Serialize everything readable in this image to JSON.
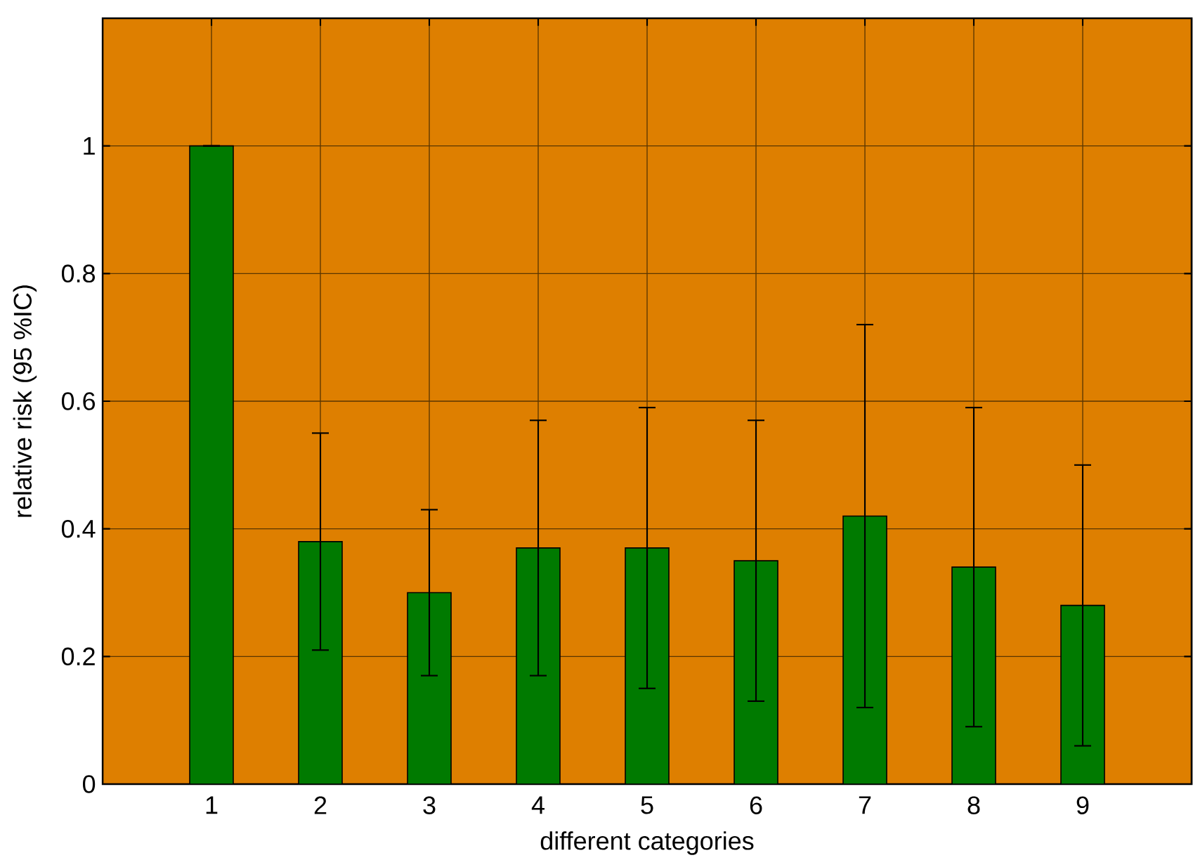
{
  "chart_data": {
    "type": "bar",
    "xlabel": "different categories",
    "ylabel": "relative risk (95 %IC)",
    "categories": [
      "1",
      "2",
      "3",
      "4",
      "5",
      "6",
      "7",
      "8",
      "9"
    ],
    "values": [
      1.0,
      0.38,
      0.3,
      0.37,
      0.37,
      0.35,
      0.42,
      0.34,
      0.28
    ],
    "errors": [
      0,
      [
        0.21,
        0.55
      ],
      [
        0.17,
        0.43
      ],
      [
        0.17,
        0.57
      ],
      [
        0.15,
        0.59
      ],
      [
        0.13,
        0.57
      ],
      [
        0.12,
        0.72
      ],
      [
        0.09,
        0.59
      ],
      [
        0.06,
        0.5
      ]
    ],
    "color": "#007a00",
    "ylim": [
      0,
      1.2
    ],
    "yticks": [
      0,
      0.2,
      0.4,
      0.6,
      0.8,
      1
    ],
    "grid": true
  }
}
